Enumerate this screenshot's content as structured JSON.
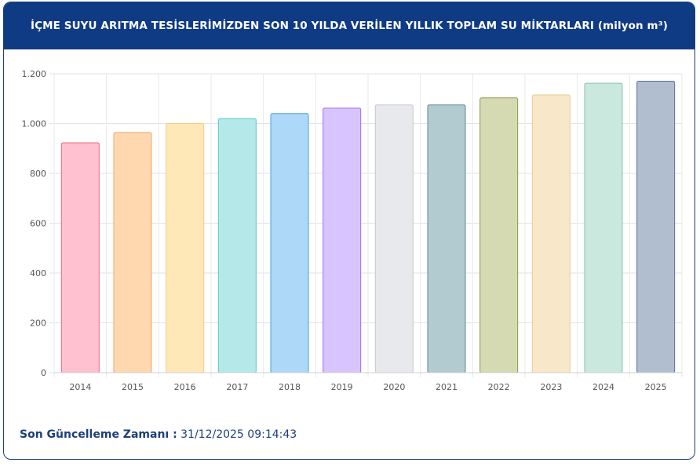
{
  "header": {
    "title": "İÇME SUYU ARITMA TESİSLERİMİZDEN SON 10 YILDA VERİLEN YILLIK TOPLAM SU MİKTARLARI (milyon m³)"
  },
  "footer": {
    "label": "Son Güncelleme Zamanı :",
    "value": "31/12/2025 09:14:43"
  },
  "chart_data": {
    "type": "bar",
    "categories": [
      "2014",
      "2015",
      "2016",
      "2017",
      "2018",
      "2019",
      "2020",
      "2021",
      "2022",
      "2023",
      "2024",
      "2025"
    ],
    "values": [
      923,
      964,
      1000,
      1020,
      1040,
      1062,
      1075,
      1075,
      1103,
      1115,
      1162,
      1170
    ],
    "ylim": [
      0,
      1200
    ],
    "yticks": [
      0,
      200,
      400,
      600,
      800,
      1000,
      1200
    ],
    "ytick_labels": [
      "0",
      "200",
      "400",
      "600",
      "800",
      "1.000",
      "1.200"
    ],
    "grid": true,
    "colors": {
      "fills": [
        "#ffc0cf",
        "#ffd8b0",
        "#ffe8b8",
        "#b5e8e8",
        "#aed8f7",
        "#d8c5fd",
        "#e8e9ec",
        "#b2cbd0",
        "#d6dab2",
        "#f8e8c9",
        "#cbe8de",
        "#b1bed0"
      ],
      "strokes": [
        "#ee6684",
        "#f4a46a",
        "#f2cd7a",
        "#5ec7c7",
        "#45a4e2",
        "#9f6df5",
        "#c6c8cc",
        "#5e8a91",
        "#8f9848",
        "#e6cc90",
        "#83c6ad",
        "#5c6f96"
      ]
    }
  }
}
